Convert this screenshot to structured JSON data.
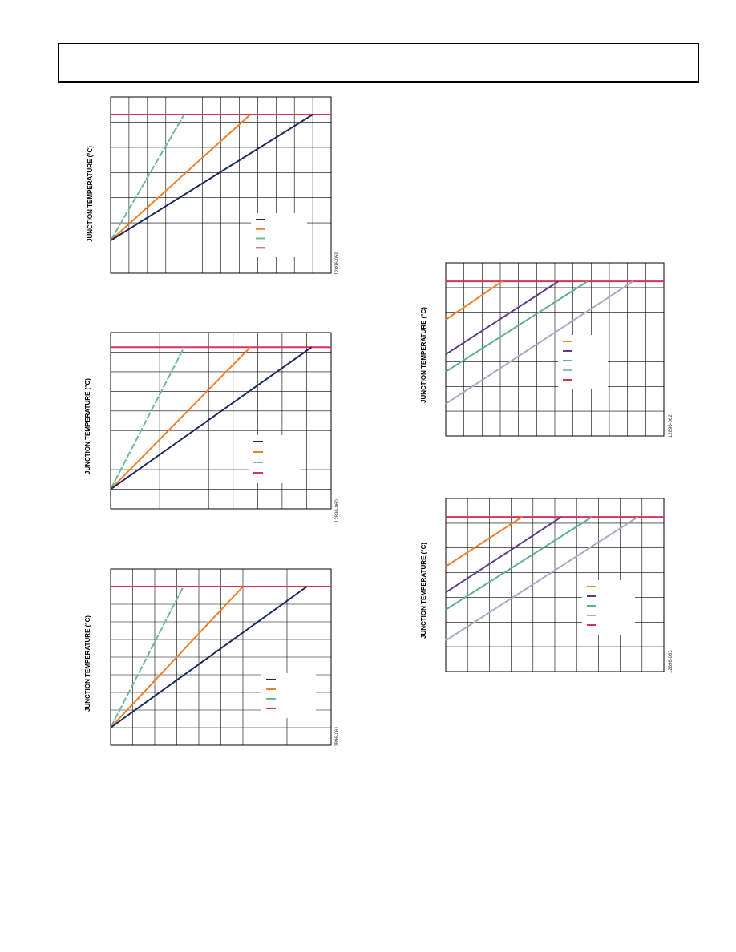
{
  "page": {
    "header_text": ""
  },
  "chart_data": [
    {
      "id": "c1",
      "type": "line",
      "ylabel": "JUNCTION TEMPERATURE (°C)",
      "figcode": "12896-059",
      "xlim": [
        0,
        12
      ],
      "ylim": [
        0,
        7
      ],
      "x_ticks": 12,
      "y_ticks": 7,
      "limit": {
        "y": 6.3,
        "color": "#d6335a"
      },
      "series": [
        {
          "color": "#6fb89a",
          "dashed": true,
          "points": [
            [
              0,
              1.3
            ],
            [
              4,
              6.3
            ]
          ]
        },
        {
          "color": "#f07f2a",
          "dashed": false,
          "points": [
            [
              0,
              1.3
            ],
            [
              7.6,
              6.3
            ]
          ]
        },
        {
          "color": "#1b2a5e",
          "dashed": false,
          "points": [
            [
              0,
              1.3
            ],
            [
              11,
              6.3
            ]
          ]
        }
      ],
      "legend": {
        "colors": [
          "#1b2a5e",
          "#f07f2a",
          "#6fb89a",
          "#d6335a"
        ]
      }
    },
    {
      "id": "c2",
      "type": "line",
      "ylabel": "JUNCTION TEMPERATURE (°C)",
      "figcode": "12896-060",
      "xlim": [
        0,
        9
      ],
      "ylim": [
        0,
        9
      ],
      "x_ticks": 9,
      "y_ticks": 9,
      "limit": {
        "y": 8.25,
        "color": "#d6335a"
      },
      "series": [
        {
          "color": "#6fb89a",
          "dashed": true,
          "points": [
            [
              0,
              1
            ],
            [
              3,
              8.25
            ]
          ]
        },
        {
          "color": "#f07f2a",
          "dashed": false,
          "points": [
            [
              0,
              1
            ],
            [
              5.7,
              8.25
            ]
          ]
        },
        {
          "color": "#1b2a5e",
          "dashed": false,
          "points": [
            [
              0,
              1
            ],
            [
              8.2,
              8.25
            ]
          ]
        }
      ],
      "legend": {
        "colors": [
          "#1b2a5e",
          "#f07f2a",
          "#6fb89a",
          "#d6335a"
        ]
      }
    },
    {
      "id": "c3",
      "type": "line",
      "ylabel": "JUNCTION TEMPERATURE (°C)",
      "figcode": "12896-061",
      "xlim": [
        0,
        10
      ],
      "ylim": [
        0,
        10
      ],
      "x_ticks": 10,
      "y_ticks": 10,
      "limit": {
        "y": 9,
        "color": "#d6335a"
      },
      "series": [
        {
          "color": "#6fb89a",
          "dashed": true,
          "points": [
            [
              0,
              1
            ],
            [
              3.3,
              9
            ]
          ]
        },
        {
          "color": "#f07f2a",
          "dashed": false,
          "points": [
            [
              0,
              1
            ],
            [
              6,
              9
            ]
          ]
        },
        {
          "color": "#1b2a5e",
          "dashed": false,
          "points": [
            [
              0,
              1
            ],
            [
              8.9,
              9
            ]
          ]
        }
      ],
      "legend": {
        "colors": [
          "#1b2a5e",
          "#f07f2a",
          "#6fb89a",
          "#d6335a"
        ]
      }
    },
    {
      "id": "c4",
      "type": "line",
      "ylabel": "JUNCTION TEMPERATURE (°C)",
      "figcode": "12896-062",
      "xlim": [
        0,
        12
      ],
      "ylim": [
        0,
        7
      ],
      "x_ticks": 12,
      "y_ticks": 7,
      "limit": {
        "y": 6.25,
        "color": "#d6335a"
      },
      "series": [
        {
          "color": "#f07f2a",
          "dashed": false,
          "points": [
            [
              0,
              4.7
            ],
            [
              3.1,
              6.25
            ]
          ]
        },
        {
          "color": "#5e3a8c",
          "dashed": false,
          "points": [
            [
              0,
              3.3
            ],
            [
              6.2,
              6.25
            ]
          ]
        },
        {
          "color": "#5fb08a",
          "dashed": false,
          "points": [
            [
              0,
              2.6
            ],
            [
              7.8,
              6.25
            ]
          ]
        },
        {
          "color": "#a0acc8",
          "dashed": false,
          "points": [
            [
              0,
              1.3
            ],
            [
              10.3,
              6.25
            ]
          ]
        }
      ],
      "legend": {
        "colors": [
          "#f07f2a",
          "#5e3a8c",
          "#5fb08a",
          "#8fbcc9",
          "#d6335a"
        ]
      }
    },
    {
      "id": "c5",
      "type": "line",
      "ylabel": "JUNCTION TEMPERATURE (°C)",
      "figcode": "12896-063",
      "xlim": [
        0,
        10
      ],
      "ylim": [
        0,
        7
      ],
      "x_ticks": 10,
      "y_ticks": 7,
      "limit": {
        "y": 6.25,
        "color": "#d6335a"
      },
      "series": [
        {
          "color": "#f07f2a",
          "dashed": false,
          "points": [
            [
              0,
              4.25
            ],
            [
              3.5,
              6.25
            ]
          ]
        },
        {
          "color": "#5e3a8c",
          "dashed": false,
          "points": [
            [
              0,
              3.2
            ],
            [
              5.3,
              6.25
            ]
          ]
        },
        {
          "color": "#5fb08a",
          "dashed": false,
          "points": [
            [
              0,
              2.5
            ],
            [
              6.7,
              6.25
            ]
          ]
        },
        {
          "color": "#a0acc8",
          "dashed": false,
          "points": [
            [
              0,
              1.25
            ],
            [
              8.8,
              6.25
            ]
          ]
        }
      ],
      "legend": {
        "colors": [
          "#f07f2a",
          "#5e3a8c",
          "#5fb08a",
          "#8fbcc9",
          "#d6335a"
        ]
      }
    }
  ]
}
